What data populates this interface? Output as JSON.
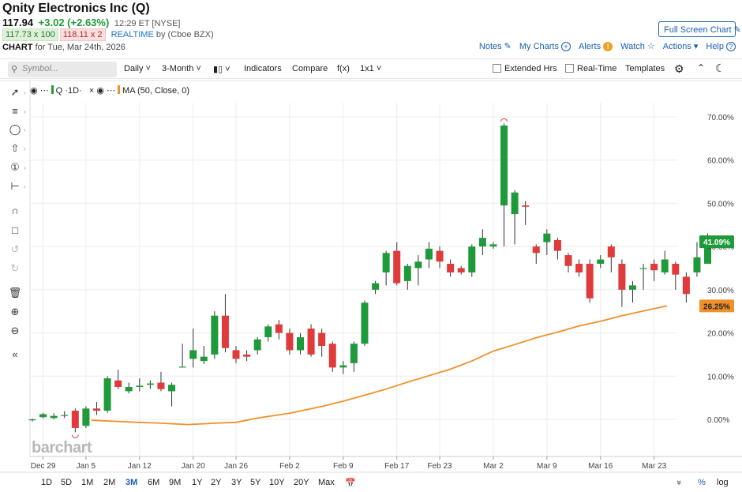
{
  "header": {
    "title": "Qnity Electronics Inc (Q)",
    "price": "117.94",
    "change": "+3.02 (+2.63%)",
    "time": "12:29 ET [NYSE]",
    "bid": "117.73 x 100",
    "ask": "118.11 x 2",
    "realtime": "REALTIME",
    "realtime_source": "by (Cboe BZX)",
    "chart_label": "CHART",
    "chart_date": "for Tue, Mar 24th, 2026",
    "fullscreen_label": "Full Screen Chart"
  },
  "top_links": {
    "notes": "Notes",
    "my_charts": "My Charts",
    "alerts": "Alerts",
    "watch": "Watch",
    "actions": "Actions",
    "help": "Help"
  },
  "toolbar": {
    "symbol_placeholder": "Symbol...",
    "interval": "Daily",
    "range": "3-Month",
    "indicators": "Indicators",
    "compare": "Compare",
    "fx": "f(x)",
    "layout": "1x1",
    "extended_hours": "Extended Hrs",
    "real_time": "Real-Time",
    "templates": "Templates"
  },
  "legend": {
    "series": "Q",
    "interval": "1D",
    "ma_label": "MA (50, Close, 0)"
  },
  "watermark": "barchart",
  "bottom": {
    "periods": [
      "1D",
      "5D",
      "1M",
      "2M",
      "3M",
      "6M",
      "9M",
      "1Y",
      "2Y",
      "3Y",
      "5Y",
      "10Y",
      "20Y",
      "Max"
    ],
    "active_period": "3M",
    "percent": "%",
    "log": "log"
  },
  "colors": {
    "up": "#1f9a3a",
    "down": "#e03a3a",
    "ma": "#f0902a",
    "accent": "#1a5fb4"
  },
  "chart_data": {
    "type": "candlestick",
    "y_axis_unit": "percent change",
    "yticks": [
      "70.00%",
      "60.00%",
      "50.00%",
      "40.00%",
      "30.00%",
      "20.00%",
      "10.00%",
      "0.00%"
    ],
    "ytick_values": [
      70,
      60,
      50,
      40,
      30,
      20,
      10,
      0
    ],
    "ylim": [
      -6,
      75
    ],
    "xlabels": [
      {
        "label": "Dec 29",
        "index": 1
      },
      {
        "label": "Jan 5",
        "index": 5
      },
      {
        "label": "Jan 12",
        "index": 10
      },
      {
        "label": "Jan 20",
        "index": 15
      },
      {
        "label": "Jan 26",
        "index": 19
      },
      {
        "label": "Feb 2",
        "index": 24
      },
      {
        "label": "Feb 9",
        "index": 29
      },
      {
        "label": "Feb 17",
        "index": 34
      },
      {
        "label": "Feb 23",
        "index": 38
      },
      {
        "label": "Mar 2",
        "index": 43
      },
      {
        "label": "Mar 9",
        "index": 48
      },
      {
        "label": "Mar 16",
        "index": 53
      },
      {
        "label": "Mar 23",
        "index": 58
      }
    ],
    "last_price_label": "41.09%",
    "ma_last_label": "26.25%",
    "candles": [
      [
        0,
        0,
        0.2,
        -0.5,
        0
      ],
      [
        0.5,
        1.2,
        1.5,
        0.2
      ],
      [
        0.3,
        0.8,
        1.4,
        0
      ],
      [
        0.8,
        1,
        1.9,
        0.3
      ],
      [
        2,
        -2,
        2.5,
        -3
      ],
      [
        -1.5,
        2.5,
        3,
        -2
      ],
      [
        2.5,
        2,
        4,
        1
      ],
      [
        2,
        9.5,
        10,
        1.5
      ],
      [
        9,
        7.5,
        11.5,
        7
      ],
      [
        6.5,
        7.5,
        8.5,
        6
      ],
      [
        7.5,
        7.8,
        9.5,
        6.5
      ],
      [
        8,
        8.3,
        9,
        7
      ],
      [
        8.5,
        7,
        11,
        6.5
      ],
      [
        6.5,
        8,
        8.5,
        3
      ],
      [
        12,
        12.2,
        17.5,
        12
      ],
      [
        14,
        16,
        21,
        12
      ],
      [
        13.5,
        14.5,
        17,
        12.8
      ],
      [
        15,
        24,
        25,
        14
      ],
      [
        24,
        16.5,
        29,
        15.5
      ],
      [
        16,
        14,
        17,
        13
      ],
      [
        15,
        14.5,
        16,
        13.5
      ],
      [
        16,
        18.5,
        19,
        15
      ],
      [
        19,
        21.5,
        22,
        18
      ],
      [
        22,
        20,
        23,
        18.5
      ],
      [
        20,
        16,
        21,
        15
      ],
      [
        16,
        19,
        20,
        15
      ],
      [
        21,
        15,
        22,
        14.5
      ],
      [
        20,
        17,
        21,
        14.5
      ],
      [
        17.5,
        12,
        18,
        11
      ],
      [
        12,
        12.5,
        13.5,
        10.5
      ],
      [
        13,
        17.5,
        18,
        11
      ],
      [
        17.5,
        27,
        27.5,
        17
      ],
      [
        30,
        31.5,
        32,
        29
      ],
      [
        34,
        38.5,
        39,
        31
      ],
      [
        39,
        31.5,
        41,
        31
      ],
      [
        32,
        35.5,
        36,
        30
      ],
      [
        35,
        36.5,
        38,
        31
      ],
      [
        37,
        39.5,
        41,
        35
      ],
      [
        39,
        36.5,
        40,
        35
      ],
      [
        36,
        34,
        37,
        33
      ],
      [
        35,
        34,
        35.5,
        33.5
      ],
      [
        34,
        40,
        40.5,
        33
      ],
      [
        40,
        42,
        44,
        38
      ],
      [
        40,
        40.5,
        41,
        39.5
      ],
      [
        49.5,
        68,
        68.5,
        40
      ],
      [
        47.5,
        52.5,
        53,
        40.5
      ],
      [
        49.5,
        49.2,
        50.5,
        45
      ],
      [
        40,
        38.5,
        40.5,
        36
      ],
      [
        41,
        43,
        44,
        38
      ],
      [
        41.5,
        39,
        42,
        37
      ],
      [
        38,
        35.5,
        38.5,
        34
      ],
      [
        36,
        34,
        37,
        33
      ],
      [
        36,
        28,
        37,
        27
      ],
      [
        36,
        37,
        38,
        35
      ],
      [
        40,
        37.5,
        40.5,
        34
      ],
      [
        36,
        30,
        37,
        26
      ],
      [
        30,
        31,
        32,
        27
      ],
      [
        35,
        35,
        36,
        30
      ],
      [
        36,
        34.5,
        37,
        32
      ],
      [
        34,
        37,
        39,
        33.5
      ],
      [
        36,
        33.5,
        36.5,
        30
      ],
      [
        33,
        29,
        34,
        27
      ],
      [
        34,
        37.5,
        41,
        33
      ],
      [
        36,
        41,
        43,
        36
      ]
    ],
    "ma_points": [
      [
        5.5,
        -0.2
      ],
      [
        9,
        -0.6
      ],
      [
        12,
        -0.9
      ],
      [
        14.5,
        -1.2
      ],
      [
        17,
        -0.9
      ],
      [
        19,
        -0.7
      ],
      [
        21,
        0.3
      ],
      [
        24,
        1.4
      ],
      [
        27,
        3
      ],
      [
        29,
        4.2
      ],
      [
        31,
        5.6
      ],
      [
        33,
        7
      ],
      [
        35,
        8.6
      ],
      [
        37,
        10.1
      ],
      [
        39,
        11.6
      ],
      [
        41,
        13.5
      ],
      [
        43,
        15.8
      ],
      [
        45,
        17.3
      ],
      [
        47,
        18.9
      ],
      [
        49,
        20.2
      ],
      [
        51,
        21.6
      ],
      [
        53,
        22.7
      ],
      [
        55,
        24
      ],
      [
        57,
        25.1
      ],
      [
        59.2,
        26.25
      ]
    ]
  }
}
